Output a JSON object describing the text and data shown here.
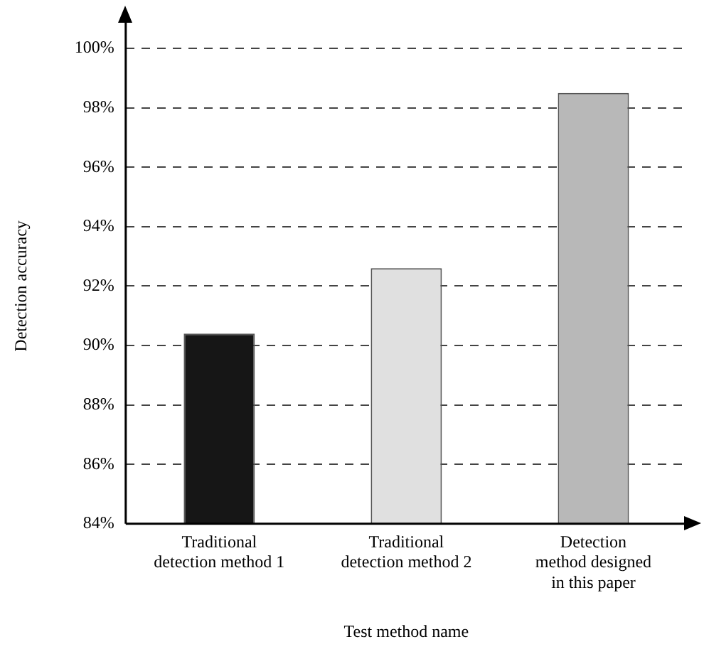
{
  "chart_data": {
    "type": "bar",
    "xlabel": "Test method name",
    "ylabel": "Detection accuracy",
    "categories": [
      "Traditional\ndetection method 1",
      "Traditional\ndetection method 2",
      "Detection\nmethod designed\nin this paper"
    ],
    "values": [
      90.4,
      92.6,
      98.5
    ],
    "colors": [
      "#161616",
      "#e0e0e0",
      "#b8b8b8"
    ],
    "ylim": [
      84,
      100
    ],
    "yticks": [
      {
        "value": 84,
        "label": "84%"
      },
      {
        "value": 86,
        "label": "86%"
      },
      {
        "value": 88,
        "label": "88%"
      },
      {
        "value": 90,
        "label": "90%"
      },
      {
        "value": 92,
        "label": "92%"
      },
      {
        "value": 94,
        "label": "94%"
      },
      {
        "value": 96,
        "label": "96%"
      },
      {
        "value": 98,
        "label": "98%"
      },
      {
        "value": 100,
        "label": "100%"
      }
    ],
    "grid": "y"
  }
}
